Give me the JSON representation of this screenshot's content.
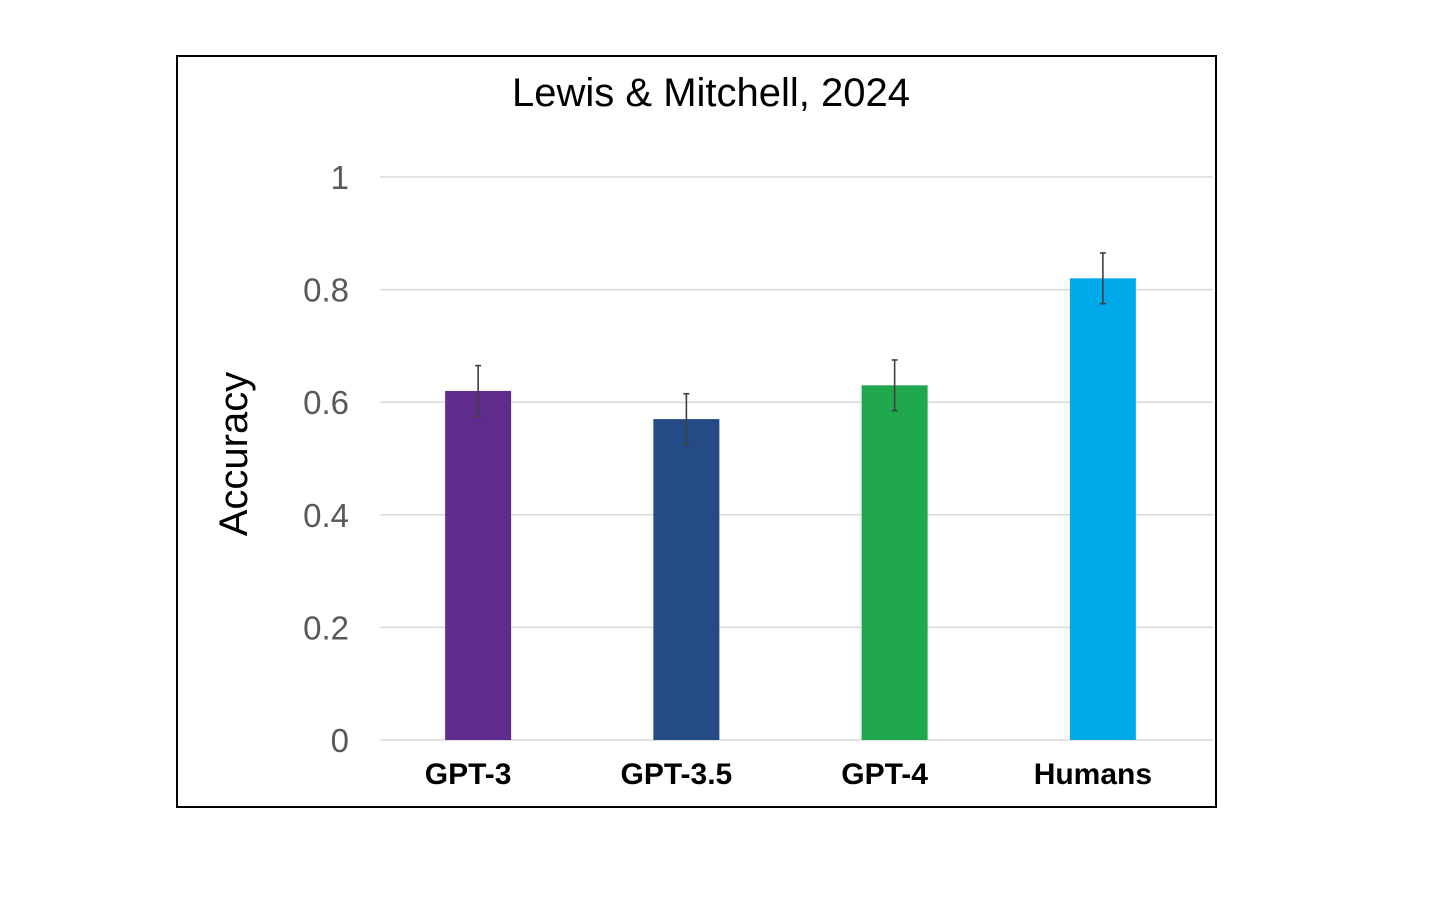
{
  "chart_data": {
    "type": "bar",
    "title": "Lewis & Mitchell, 2024",
    "xlabel": "",
    "ylabel": "Accuracy",
    "ylim": [
      0,
      1
    ],
    "yticks": [
      0,
      0.2,
      0.4,
      0.6,
      0.8,
      1
    ],
    "ytick_labels": [
      "0",
      "0.2",
      "0.4",
      "0.6",
      "0.8",
      "1"
    ],
    "grid": true,
    "categories": [
      "GPT-3",
      "GPT-3.5",
      "GPT-4",
      "Humans"
    ],
    "values": [
      0.62,
      0.57,
      0.63,
      0.82
    ],
    "error_low": [
      0.575,
      0.525,
      0.585,
      0.775
    ],
    "error_high": [
      0.665,
      0.615,
      0.675,
      0.865
    ],
    "colors": [
      "#5f2c8e",
      "#244b86",
      "#1fa74e",
      "#00a9e8"
    ]
  }
}
